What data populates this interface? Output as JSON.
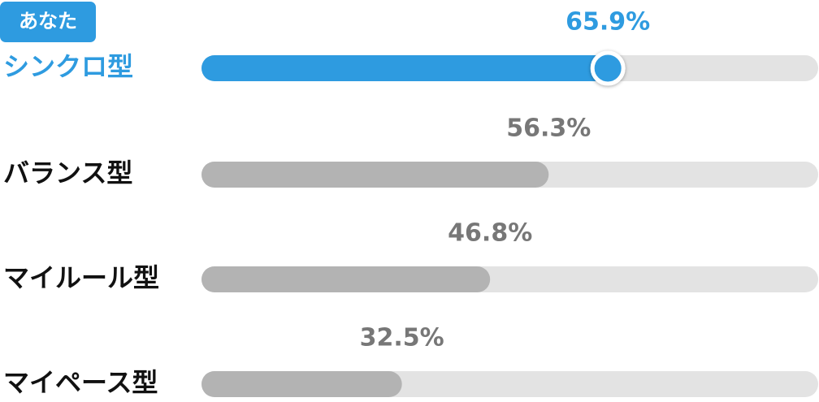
{
  "chart_data": {
    "type": "hbar",
    "badge": "あなた",
    "categories": [
      "シンクロ型",
      "バランス型",
      "マイルール型",
      "マイペース型"
    ],
    "values": [
      65.9,
      56.3,
      46.8,
      32.5
    ],
    "value_labels": [
      "65.9%",
      "56.3%",
      "46.8%",
      "32.5%"
    ],
    "colors": [
      "#2e9be0",
      "#b3b3b3",
      "#b3b3b3",
      "#b3b3b3"
    ],
    "label_colors": [
      "#2e9be0",
      "#111111",
      "#111111",
      "#111111"
    ],
    "value_label_colors": [
      "#2e9be0",
      "#777777",
      "#777777",
      "#777777"
    ],
    "track_color": "#e3e3e3",
    "highlight_index": 0,
    "xlim": [
      0,
      100
    ]
  }
}
